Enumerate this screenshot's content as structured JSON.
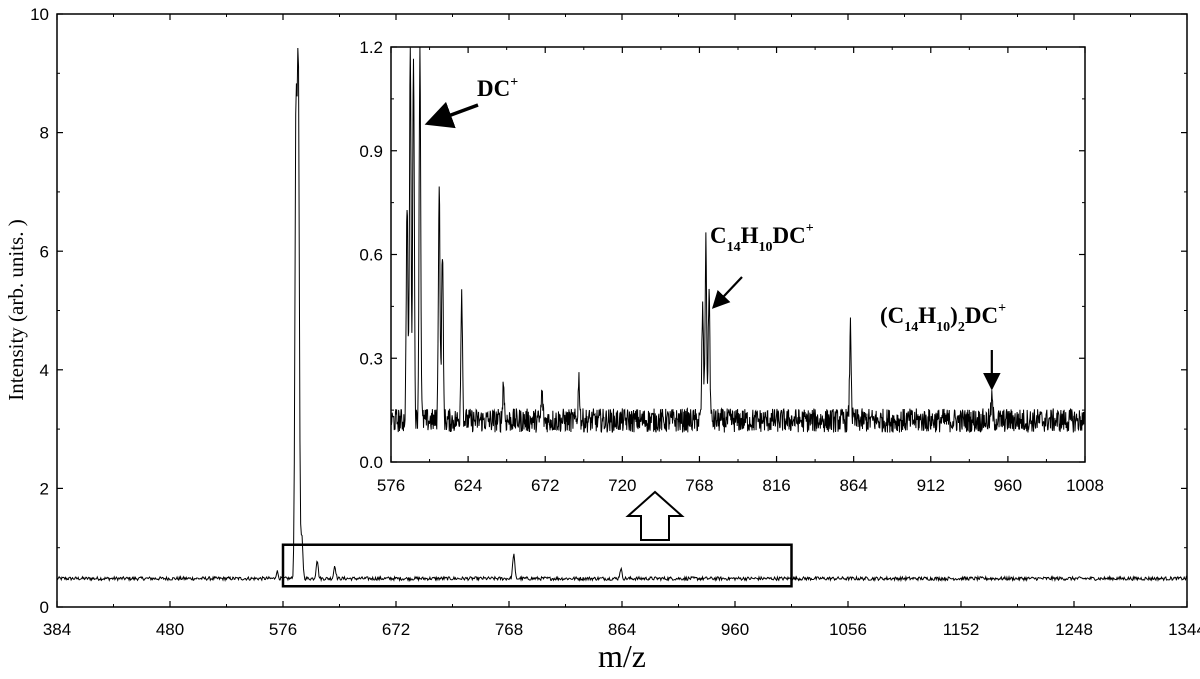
{
  "chart_data": [
    {
      "type": "line",
      "title": "",
      "xlabel": "m/z",
      "ylabel": "Intensity (arb. units. )",
      "xlim": [
        384,
        1344
      ],
      "ylim": [
        0,
        10
      ],
      "x_ticks": [
        "384",
        "480",
        "576",
        "672",
        "768",
        "864",
        "960",
        "1056",
        "1152",
        "1248",
        "1344"
      ],
      "y_ticks": [
        "0",
        "2",
        "4",
        "6",
        "8",
        "10"
      ],
      "grid": false,
      "baseline": 0.48,
      "peaks": [
        {
          "x": 571,
          "y": 0.6
        },
        {
          "x": 587,
          "y": 8.2
        },
        {
          "x": 589,
          "y": 9.05
        },
        {
          "x": 592,
          "y": 1.2
        },
        {
          "x": 605,
          "y": 0.8
        },
        {
          "x": 620,
          "y": 0.7
        },
        {
          "x": 772,
          "y": 0.9
        },
        {
          "x": 863,
          "y": 0.65
        }
      ],
      "zoom_box": {
        "x": [
          576,
          1008
        ],
        "y": [
          0.35,
          1.05
        ]
      }
    },
    {
      "type": "line",
      "title": "",
      "xlabel": "",
      "ylabel": "",
      "xlim": [
        576,
        1008
      ],
      "ylim": [
        0.0,
        1.2
      ],
      "x_ticks": [
        "576",
        "624",
        "672",
        "720",
        "768",
        "816",
        "864",
        "912",
        "960",
        "1008"
      ],
      "y_ticks": [
        "0.0",
        "0.3",
        "0.6",
        "0.9",
        "1.2"
      ],
      "grid": false,
      "baseline": 0.12,
      "peaks": [
        {
          "x": 586,
          "y": 0.76
        },
        {
          "x": 588,
          "y": 1.2
        },
        {
          "x": 590,
          "y": 1.2
        },
        {
          "x": 594,
          "y": 1.2
        },
        {
          "x": 606,
          "y": 0.81
        },
        {
          "x": 608,
          "y": 0.62
        },
        {
          "x": 620,
          "y": 0.5
        },
        {
          "x": 646,
          "y": 0.23
        },
        {
          "x": 670,
          "y": 0.2
        },
        {
          "x": 693,
          "y": 0.24
        },
        {
          "x": 770,
          "y": 0.45
        },
        {
          "x": 772,
          "y": 0.63
        },
        {
          "x": 774,
          "y": 0.5
        },
        {
          "x": 862,
          "y": 0.39
        },
        {
          "x": 950,
          "y": 0.18
        }
      ],
      "annotations": [
        {
          "label": "DC",
          "sup": "+",
          "target": {
            "x": 594,
            "y": 0.95
          }
        },
        {
          "label": "C14H10DC+",
          "target": {
            "x": 773,
            "y": 0.43
          }
        },
        {
          "label": "(C14H10)2DC+",
          "target": {
            "x": 950,
            "y": 0.19
          }
        }
      ]
    }
  ]
}
